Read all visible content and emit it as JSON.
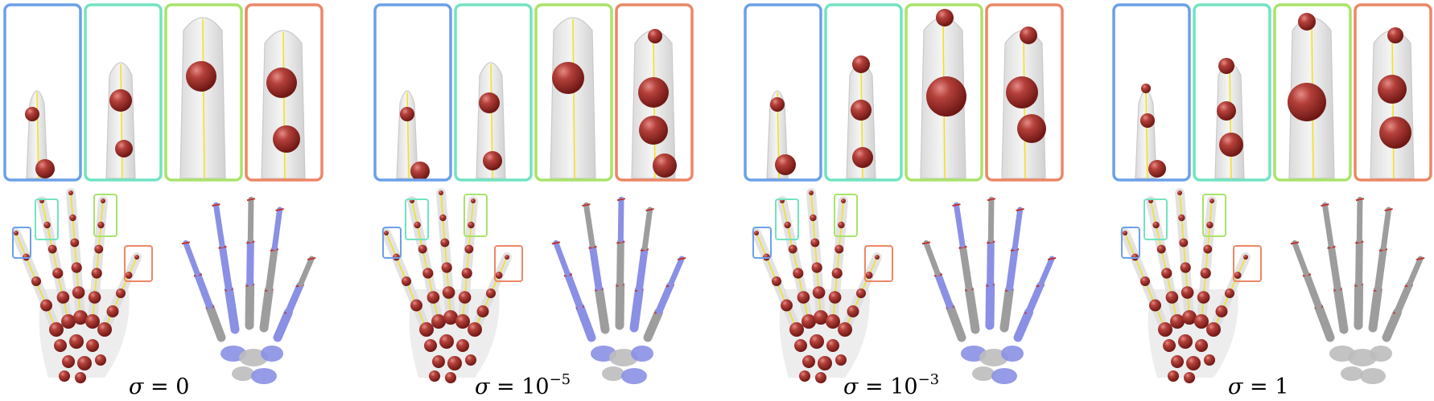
{
  "figure": {
    "panels": [
      {
        "label_symbol": "σ",
        "label_eq": " = ",
        "label_base": "0",
        "label_exp": ""
      },
      {
        "label_symbol": "σ",
        "label_eq": " = ",
        "label_base": "10",
        "label_exp": "−5"
      },
      {
        "label_symbol": "σ",
        "label_eq": " = ",
        "label_base": "10",
        "label_exp": "−3"
      },
      {
        "label_symbol": "σ",
        "label_eq": " = ",
        "label_base": "1",
        "label_exp": ""
      }
    ],
    "zoom_frame_colors": [
      "#6ca0e8",
      "#72e3c0",
      "#a9e36a",
      "#ec8766"
    ],
    "sphere_color": "#a9332f",
    "bone_color": "#9d9d9d",
    "highlight_color": "#8a90e4",
    "skeleton_line_color": "#f3e11c"
  }
}
